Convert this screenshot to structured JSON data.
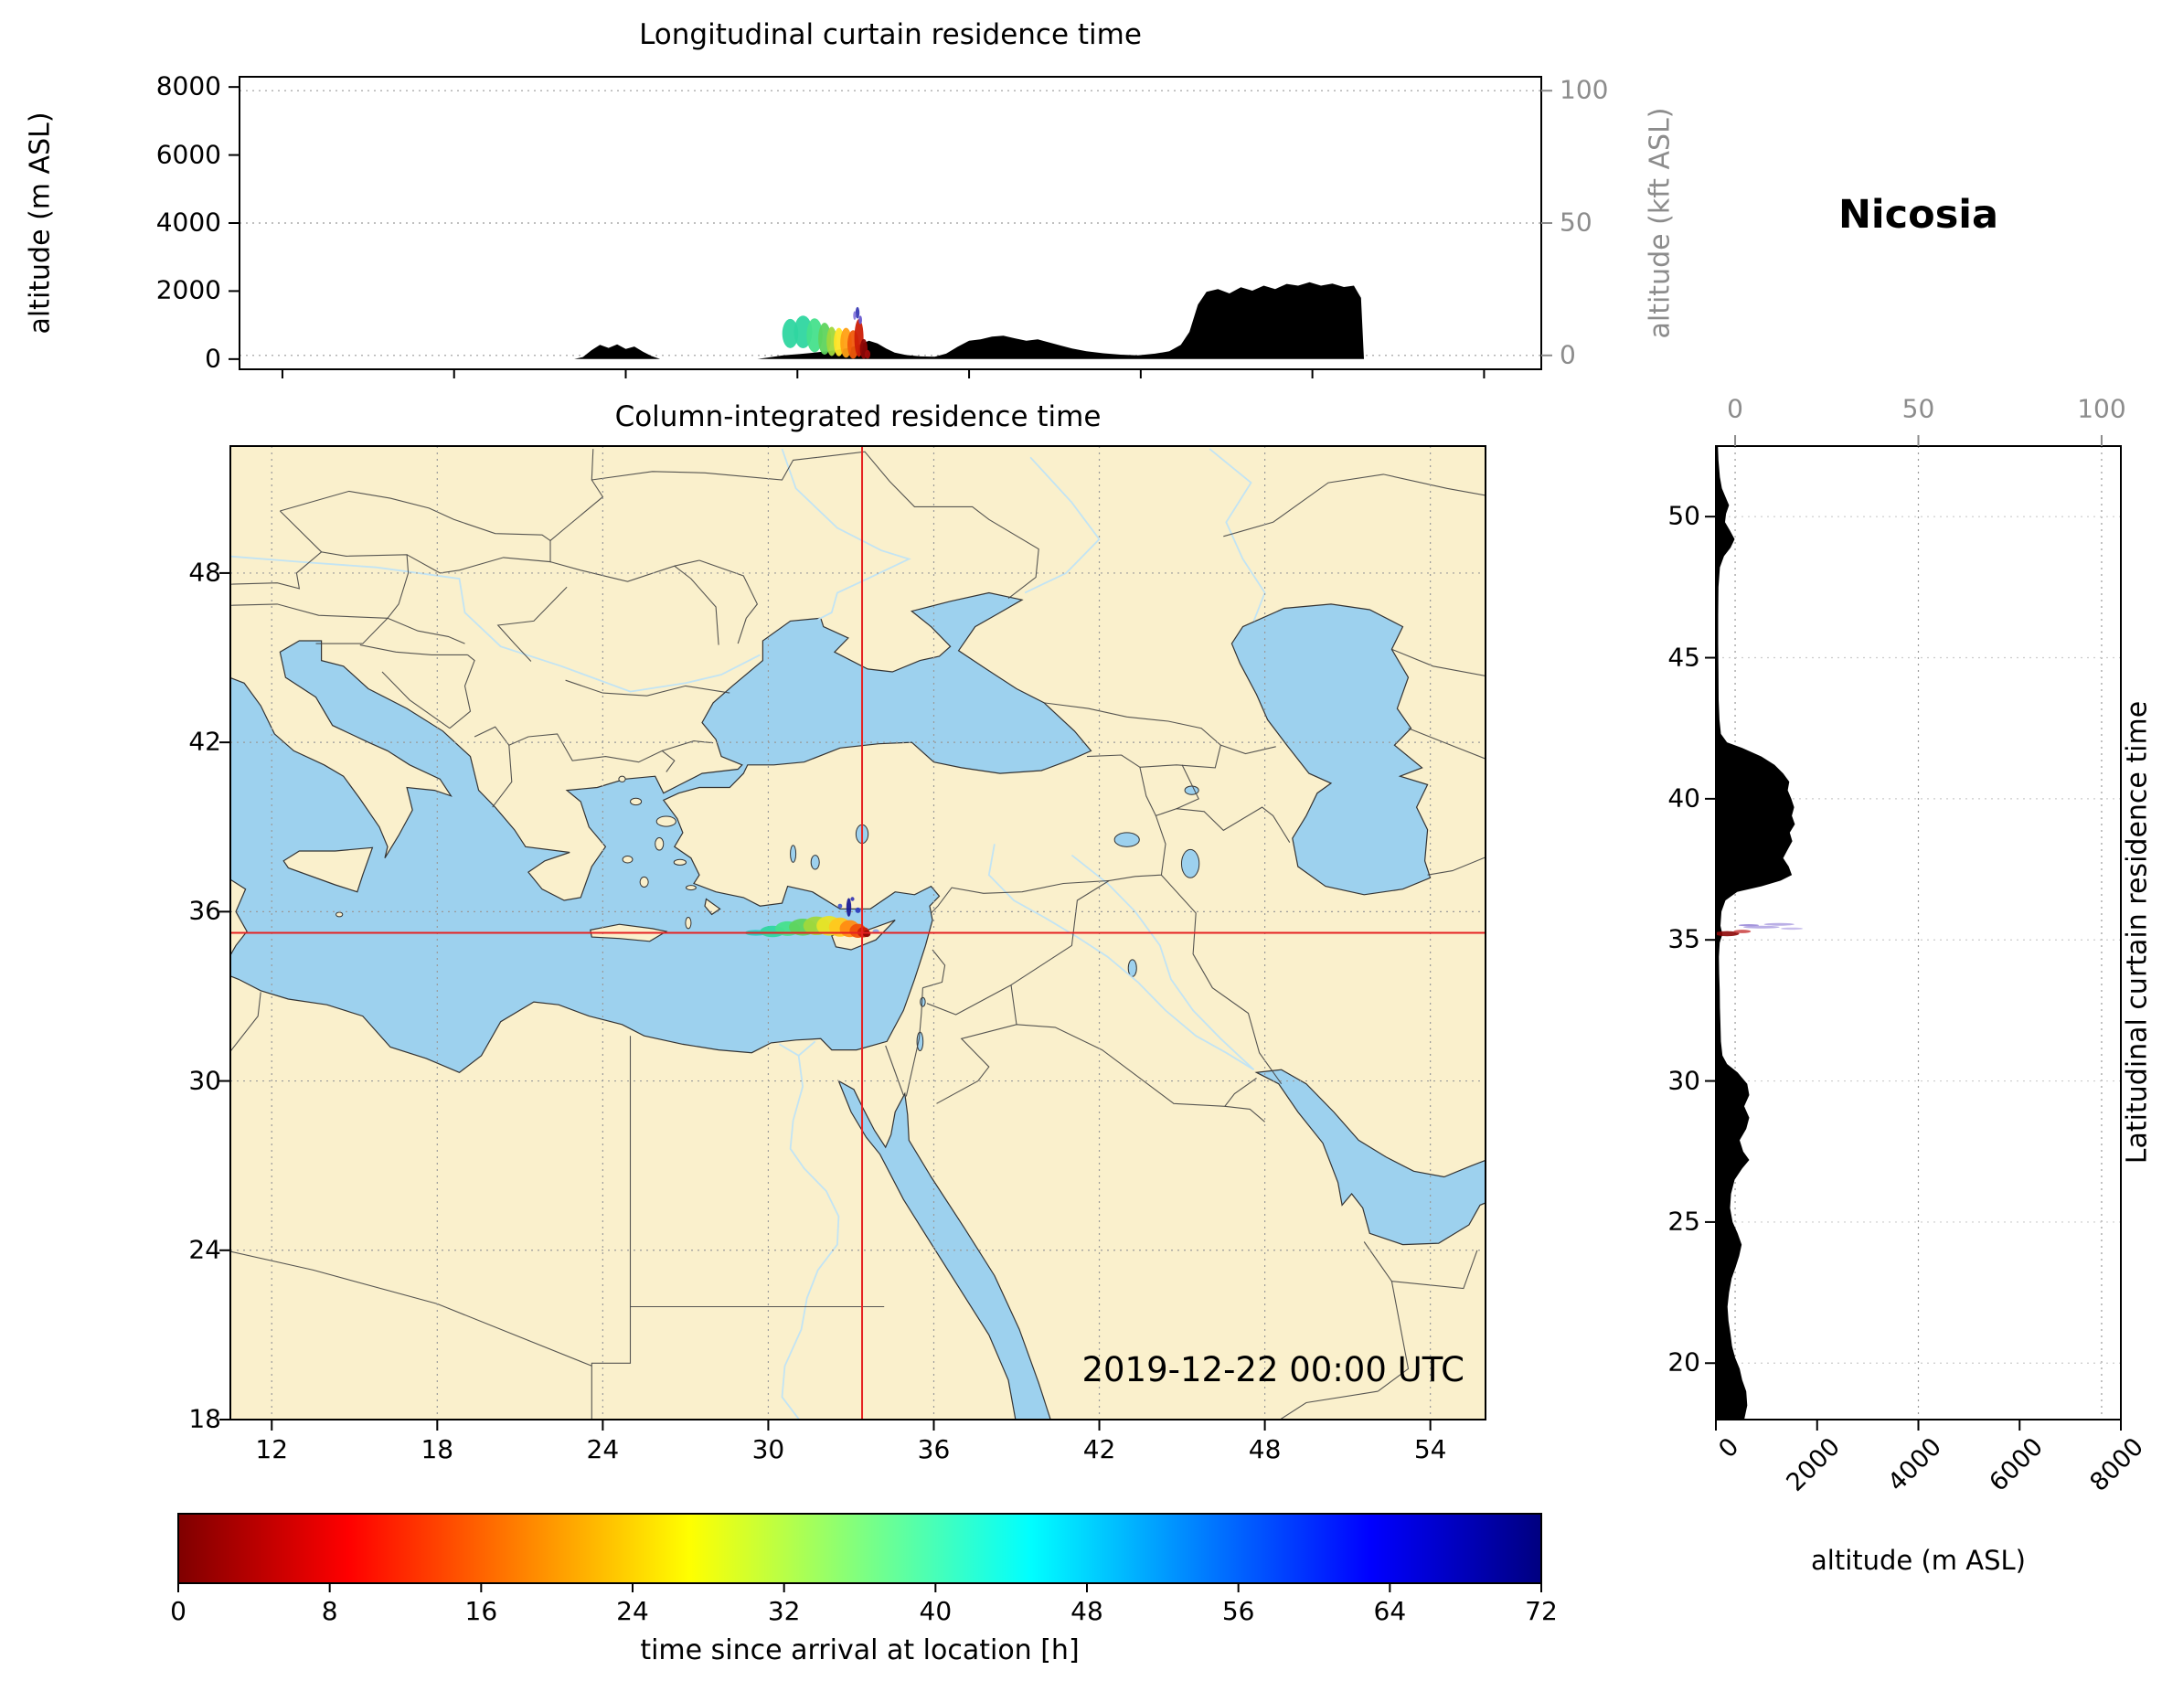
{
  "meta": {
    "station": "Nicosia"
  },
  "styles": {
    "land": "#faf0cc",
    "water": "#9dd1ee",
    "river": "#bfe3f5",
    "coast": "#333333",
    "border": "#444444",
    "grid": "#9a9a9a",
    "terrain": "#000000",
    "crosshair": "#e52222",
    "kft": "#8c8c8c"
  },
  "chart_data": [
    {
      "id": "longitudinal_curtain",
      "type": "area",
      "title": "Longitudinal curtain residence time",
      "x_range": [
        10.5,
        56
      ],
      "x_ticks": [
        12,
        18,
        24,
        30,
        36,
        42,
        48,
        54
      ],
      "y_left": {
        "label": "altitude (m ASL)",
        "ticks": [
          0,
          2000,
          4000,
          6000,
          8000
        ],
        "range": [
          -300,
          8300
        ]
      },
      "y_right": {
        "label": "altitude (kft ASL)",
        "ticks": [
          0,
          50,
          100
        ],
        "range": [
          -5.25,
          105.25
        ]
      },
      "terrain_profile": [
        [
          10.5,
          0
        ],
        [
          22.2,
          0
        ],
        [
          22.5,
          60
        ],
        [
          22.8,
          260
        ],
        [
          23.1,
          420
        ],
        [
          23.4,
          330
        ],
        [
          23.7,
          430
        ],
        [
          24.0,
          300
        ],
        [
          24.3,
          370
        ],
        [
          24.6,
          220
        ],
        [
          24.9,
          90
        ],
        [
          25.2,
          0
        ],
        [
          28.6,
          0
        ],
        [
          29.0,
          50
        ],
        [
          29.5,
          110
        ],
        [
          30.1,
          150
        ],
        [
          30.7,
          200
        ],
        [
          31.3,
          260
        ],
        [
          31.8,
          330
        ],
        [
          32.2,
          430
        ],
        [
          32.5,
          540
        ],
        [
          32.8,
          460
        ],
        [
          33.1,
          310
        ],
        [
          33.4,
          190
        ],
        [
          33.8,
          120
        ],
        [
          34.3,
          80
        ],
        [
          34.8,
          70
        ],
        [
          35.2,
          160
        ],
        [
          35.6,
          360
        ],
        [
          36.0,
          540
        ],
        [
          36.4,
          580
        ],
        [
          36.8,
          660
        ],
        [
          37.2,
          690
        ],
        [
          37.6,
          610
        ],
        [
          38.0,
          540
        ],
        [
          38.4,
          580
        ],
        [
          38.8,
          490
        ],
        [
          39.2,
          400
        ],
        [
          39.6,
          310
        ],
        [
          40.1,
          230
        ],
        [
          40.7,
          170
        ],
        [
          41.3,
          130
        ],
        [
          41.9,
          110
        ],
        [
          42.5,
          160
        ],
        [
          43.0,
          230
        ],
        [
          43.4,
          420
        ],
        [
          43.7,
          800
        ],
        [
          44.0,
          1600
        ],
        [
          44.3,
          1980
        ],
        [
          44.7,
          2060
        ],
        [
          45.1,
          1930
        ],
        [
          45.5,
          2110
        ],
        [
          45.9,
          2010
        ],
        [
          46.3,
          2160
        ],
        [
          46.7,
          2060
        ],
        [
          47.1,
          2210
        ],
        [
          47.5,
          2160
        ],
        [
          47.9,
          2260
        ],
        [
          48.3,
          2160
        ],
        [
          48.7,
          2220
        ],
        [
          49.1,
          2120
        ],
        [
          49.45,
          2160
        ],
        [
          49.7,
          1800
        ],
        [
          49.8,
          0
        ],
        [
          56,
          0
        ]
      ],
      "plume": [
        [
          29.75,
          750,
          0.28,
          430,
          "#2fd6a0"
        ],
        [
          30.2,
          800,
          0.32,
          480,
          "#2fd6a0"
        ],
        [
          30.6,
          700,
          0.28,
          500,
          "#46e08c"
        ],
        [
          30.95,
          600,
          0.22,
          470,
          "#5ed45e"
        ],
        [
          31.2,
          520,
          0.18,
          430,
          "#a0d83c"
        ],
        [
          31.45,
          500,
          0.18,
          420,
          "#ffe426"
        ],
        [
          31.7,
          480,
          0.2,
          440,
          "#ffa014"
        ],
        [
          31.95,
          430,
          0.2,
          420,
          "#f05a0a"
        ],
        [
          32.15,
          620,
          0.16,
          560,
          "#cc1e06"
        ],
        [
          32.32,
          300,
          0.13,
          290,
          "#8c0606"
        ],
        [
          32.1,
          1360,
          0.07,
          170,
          "#3a3ab4"
        ],
        [
          32.2,
          1150,
          0.06,
          130,
          "#6a5ad0"
        ],
        [
          32.0,
          1280,
          0.05,
          130,
          "#8878dc"
        ],
        [
          32.45,
          140,
          0.1,
          130,
          "#a00a0a"
        ]
      ]
    },
    {
      "id": "map",
      "type": "map",
      "title": "Column-integrated residence time",
      "annotation": "2019-12-22 00:00 UTC",
      "lon_range": [
        10.5,
        56
      ],
      "lat_range": [
        18,
        52.5
      ],
      "x_ticks": [
        12,
        18,
        24,
        30,
        36,
        42,
        48,
        54
      ],
      "y_ticks": [
        18,
        24,
        30,
        36,
        42,
        48
      ],
      "crosshair": {
        "lon": 33.4,
        "lat": 35.25
      },
      "plume": [
        [
          29.55,
          35.25,
          0.4,
          0.1,
          "#25cfc0"
        ],
        [
          30.15,
          35.3,
          0.45,
          0.2,
          "#2fd6a0"
        ],
        [
          30.7,
          35.4,
          0.45,
          0.26,
          "#46e08c"
        ],
        [
          31.25,
          35.45,
          0.5,
          0.3,
          "#5ed45e"
        ],
        [
          31.75,
          35.5,
          0.48,
          0.33,
          "#a0d83c"
        ],
        [
          32.2,
          35.5,
          0.45,
          0.35,
          "#e8e428"
        ],
        [
          32.6,
          35.45,
          0.4,
          0.34,
          "#ffc81e"
        ],
        [
          32.95,
          35.4,
          0.36,
          0.3,
          "#ff8c12"
        ],
        [
          33.25,
          35.32,
          0.3,
          0.25,
          "#f0500a"
        ],
        [
          33.45,
          35.27,
          0.22,
          0.18,
          "#cc1e06"
        ],
        [
          33.57,
          35.22,
          0.14,
          0.12,
          "#8c0606"
        ],
        [
          32.92,
          36.15,
          0.09,
          0.33,
          "#1c1c96"
        ],
        [
          33.25,
          36.05,
          0.1,
          0.1,
          "#2f3fbe"
        ],
        [
          32.6,
          36.2,
          0.08,
          0.08,
          "#4656cc"
        ],
        [
          33.05,
          36.45,
          0.07,
          0.07,
          "#3a3ab4"
        ],
        [
          33.9,
          35.3,
          0.12,
          0.08,
          "#8fa8e8"
        ]
      ]
    },
    {
      "id": "latitudinal_curtain",
      "type": "area",
      "title": "Latitudinal curtain residence time",
      "lat_range": [
        18,
        52.5
      ],
      "y_ticks": [
        20,
        25,
        30,
        35,
        40,
        45,
        50
      ],
      "x_bottom": {
        "label": "altitude (m ASL)",
        "ticks": [
          0,
          2000,
          4000,
          6000,
          8000
        ],
        "range": [
          0,
          8000
        ]
      },
      "x_top": {
        "ticks": [
          0,
          50,
          100
        ],
        "range": [
          -5.25,
          105.25
        ]
      },
      "terrain_profile": [
        [
          18.0,
          560
        ],
        [
          18.5,
          620
        ],
        [
          19.0,
          600
        ],
        [
          19.4,
          520
        ],
        [
          19.8,
          470
        ],
        [
          20.2,
          380
        ],
        [
          20.6,
          320
        ],
        [
          21.0,
          290
        ],
        [
          21.5,
          250
        ],
        [
          22.0,
          230
        ],
        [
          22.5,
          260
        ],
        [
          23.0,
          310
        ],
        [
          23.4,
          390
        ],
        [
          23.8,
          460
        ],
        [
          24.2,
          510
        ],
        [
          24.6,
          430
        ],
        [
          25.0,
          330
        ],
        [
          25.5,
          280
        ],
        [
          26.0,
          300
        ],
        [
          26.5,
          370
        ],
        [
          26.9,
          520
        ],
        [
          27.2,
          660
        ],
        [
          27.5,
          540
        ],
        [
          27.9,
          470
        ],
        [
          28.3,
          600
        ],
        [
          28.7,
          660
        ],
        [
          29.1,
          560
        ],
        [
          29.5,
          660
        ],
        [
          29.9,
          620
        ],
        [
          30.3,
          430
        ],
        [
          30.6,
          220
        ],
        [
          30.9,
          130
        ],
        [
          31.4,
          100
        ],
        [
          32.0,
          90
        ],
        [
          32.6,
          80
        ],
        [
          33.2,
          75
        ],
        [
          33.8,
          65
        ],
        [
          34.4,
          60
        ],
        [
          34.9,
          75
        ],
        [
          35.2,
          130
        ],
        [
          35.5,
          90
        ],
        [
          36.0,
          110
        ],
        [
          36.4,
          190
        ],
        [
          36.7,
          420
        ],
        [
          36.9,
          900
        ],
        [
          37.1,
          1280
        ],
        [
          37.3,
          1500
        ],
        [
          37.6,
          1440
        ],
        [
          37.9,
          1330
        ],
        [
          38.2,
          1420
        ],
        [
          38.5,
          1510
        ],
        [
          38.8,
          1460
        ],
        [
          39.1,
          1560
        ],
        [
          39.4,
          1500
        ],
        [
          39.7,
          1545
        ],
        [
          40.0,
          1490
        ],
        [
          40.3,
          1420
        ],
        [
          40.6,
          1450
        ],
        [
          40.9,
          1330
        ],
        [
          41.2,
          1160
        ],
        [
          41.5,
          900
        ],
        [
          41.8,
          520
        ],
        [
          42.0,
          220
        ],
        [
          42.3,
          100
        ],
        [
          42.8,
          70
        ],
        [
          43.5,
          55
        ],
        [
          44.5,
          50
        ],
        [
          45.5,
          45
        ],
        [
          46.5,
          45
        ],
        [
          47.5,
          50
        ],
        [
          48.2,
          80
        ],
        [
          48.6,
          160
        ],
        [
          48.9,
          290
        ],
        [
          49.2,
          370
        ],
        [
          49.5,
          280
        ],
        [
          49.8,
          180
        ],
        [
          50.1,
          200
        ],
        [
          50.4,
          260
        ],
        [
          50.7,
          190
        ],
        [
          51.0,
          120
        ],
        [
          51.4,
          80
        ],
        [
          52.0,
          50
        ],
        [
          52.5,
          40
        ]
      ],
      "plume": [
        [
          220,
          35.22,
          240,
          0.09,
          "#8c0606"
        ],
        [
          520,
          35.3,
          170,
          0.06,
          "#cc4848"
        ],
        [
          900,
          35.45,
          360,
          0.05,
          "#b3a6e3"
        ],
        [
          1250,
          35.55,
          300,
          0.05,
          "#b3a6e3"
        ],
        [
          1500,
          35.4,
          220,
          0.04,
          "#c3b8ea"
        ],
        [
          650,
          35.52,
          200,
          0.04,
          "#9a8ad8"
        ]
      ]
    },
    {
      "id": "colorbar",
      "type": "colorbar",
      "label": "time since arrival at location [h]",
      "range": [
        0,
        72
      ],
      "ticks": [
        0,
        8,
        16,
        24,
        32,
        40,
        48,
        56,
        64,
        72
      ],
      "gradient_stops": [
        [
          0,
          "#7f0000"
        ],
        [
          0.125,
          "#ff0000"
        ],
        [
          0.375,
          "#ffff00"
        ],
        [
          0.625,
          "#00ffff"
        ],
        [
          0.875,
          "#0000ff"
        ],
        [
          1,
          "#000080"
        ]
      ]
    }
  ]
}
